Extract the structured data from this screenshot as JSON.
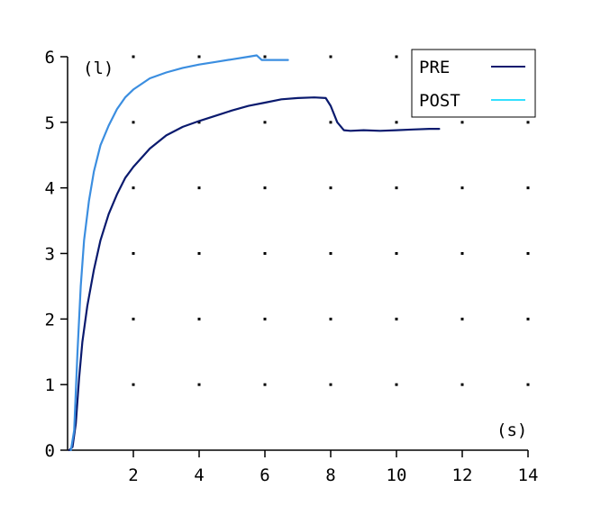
{
  "chart_data": {
    "type": "line",
    "y_unit_label": "(l)",
    "x_unit_label": "(s)",
    "xlim": [
      0,
      14
    ],
    "ylim": [
      0,
      6
    ],
    "x_ticks": [
      "2",
      "4",
      "6",
      "8",
      "10",
      "12",
      "14"
    ],
    "y_ticks": [
      "0",
      "1",
      "2",
      "3",
      "4",
      "5",
      "6"
    ],
    "grid": "dotted",
    "legend_position": "top-right",
    "series": [
      {
        "name": "PRE",
        "color": "#0a1a6e",
        "points": [
          [
            0.05,
            0.0
          ],
          [
            0.15,
            0.05
          ],
          [
            0.25,
            0.4
          ],
          [
            0.35,
            1.1
          ],
          [
            0.45,
            1.65
          ],
          [
            0.6,
            2.2
          ],
          [
            0.8,
            2.75
          ],
          [
            1.0,
            3.2
          ],
          [
            1.25,
            3.6
          ],
          [
            1.5,
            3.9
          ],
          [
            1.75,
            4.15
          ],
          [
            2.0,
            4.32
          ],
          [
            2.5,
            4.6
          ],
          [
            3.0,
            4.8
          ],
          [
            3.5,
            4.93
          ],
          [
            4.0,
            5.02
          ],
          [
            4.5,
            5.1
          ],
          [
            5.0,
            5.18
          ],
          [
            5.5,
            5.25
          ],
          [
            6.0,
            5.3
          ],
          [
            6.5,
            5.35
          ],
          [
            7.0,
            5.37
          ],
          [
            7.5,
            5.38
          ],
          [
            7.85,
            5.37
          ],
          [
            8.0,
            5.25
          ],
          [
            8.2,
            5.0
          ],
          [
            8.4,
            4.88
          ],
          [
            8.6,
            4.87
          ],
          [
            9.0,
            4.88
          ],
          [
            9.5,
            4.87
          ],
          [
            10.0,
            4.88
          ],
          [
            10.5,
            4.89
          ],
          [
            11.0,
            4.9
          ],
          [
            11.3,
            4.9
          ]
        ]
      },
      {
        "name": "POST",
        "color": "#3b8ee0",
        "points": [
          [
            0.1,
            0.0
          ],
          [
            0.2,
            0.3
          ],
          [
            0.3,
            1.5
          ],
          [
            0.4,
            2.5
          ],
          [
            0.5,
            3.2
          ],
          [
            0.65,
            3.8
          ],
          [
            0.8,
            4.25
          ],
          [
            1.0,
            4.65
          ],
          [
            1.25,
            4.95
          ],
          [
            1.5,
            5.2
          ],
          [
            1.75,
            5.38
          ],
          [
            2.0,
            5.5
          ],
          [
            2.5,
            5.67
          ],
          [
            3.0,
            5.76
          ],
          [
            3.5,
            5.83
          ],
          [
            4.0,
            5.88
          ],
          [
            4.5,
            5.92
          ],
          [
            5.0,
            5.96
          ],
          [
            5.5,
            6.0
          ],
          [
            5.75,
            6.02
          ],
          [
            5.9,
            5.95
          ],
          [
            6.2,
            5.95
          ],
          [
            6.7,
            5.95
          ]
        ]
      }
    ]
  }
}
